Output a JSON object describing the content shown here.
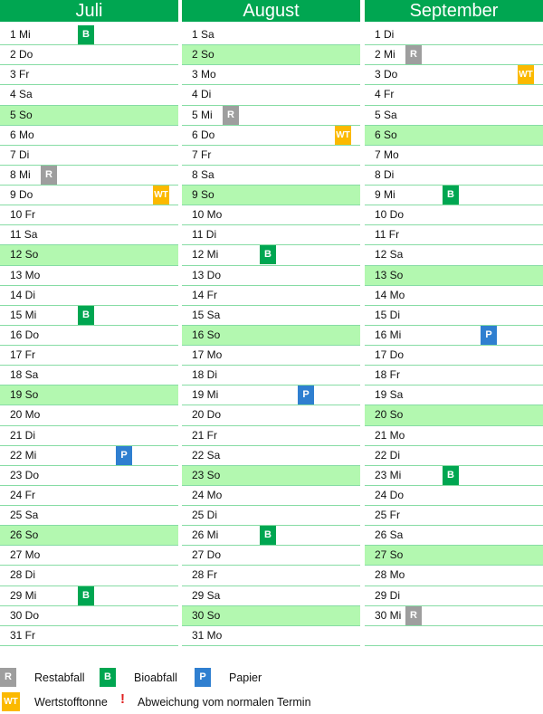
{
  "colors": {
    "header": "#00a651",
    "sunday": "#b3f8b0",
    "R": "#9e9e9e",
    "B": "#00a651",
    "P": "#2f7fd0",
    "WT": "#fbb900"
  },
  "months": [
    {
      "name": "Juli",
      "days": [
        {
          "label": "1 Mi",
          "badge": "B"
        },
        {
          "label": "2 Do"
        },
        {
          "label": "3 Fr"
        },
        {
          "label": "4 Sa"
        },
        {
          "label": "5 So",
          "sun": true
        },
        {
          "label": "6 Mo"
        },
        {
          "label": "7 Di"
        },
        {
          "label": "8 Mi",
          "badge": "R"
        },
        {
          "label": "9 Do",
          "badge": "WT"
        },
        {
          "label": "10 Fr"
        },
        {
          "label": "11 Sa"
        },
        {
          "label": "12 So",
          "sun": true
        },
        {
          "label": "13 Mo"
        },
        {
          "label": "14 Di"
        },
        {
          "label": "15 Mi",
          "badge": "B"
        },
        {
          "label": "16 Do"
        },
        {
          "label": "17 Fr"
        },
        {
          "label": "18 Sa"
        },
        {
          "label": "19 So",
          "sun": true
        },
        {
          "label": "20 Mo"
        },
        {
          "label": "21 Di"
        },
        {
          "label": "22 Mi",
          "badge": "P"
        },
        {
          "label": "23 Do"
        },
        {
          "label": "24 Fr"
        },
        {
          "label": "25 Sa"
        },
        {
          "label": "26 So",
          "sun": true
        },
        {
          "label": "27 Mo"
        },
        {
          "label": "28 Di"
        },
        {
          "label": "29 Mi",
          "badge": "B"
        },
        {
          "label": "30 Do"
        },
        {
          "label": "31 Fr"
        }
      ]
    },
    {
      "name": "August",
      "days": [
        {
          "label": "1 Sa"
        },
        {
          "label": "2 So",
          "sun": true
        },
        {
          "label": "3 Mo"
        },
        {
          "label": "4 Di"
        },
        {
          "label": "5 Mi",
          "badge": "R"
        },
        {
          "label": "6 Do",
          "badge": "WT"
        },
        {
          "label": "7 Fr"
        },
        {
          "label": "8 Sa"
        },
        {
          "label": "9 So",
          "sun": true
        },
        {
          "label": "10 Mo"
        },
        {
          "label": "11 Di"
        },
        {
          "label": "12 Mi",
          "badge": "B"
        },
        {
          "label": "13 Do"
        },
        {
          "label": "14 Fr"
        },
        {
          "label": "15 Sa"
        },
        {
          "label": "16 So",
          "sun": true
        },
        {
          "label": "17 Mo"
        },
        {
          "label": "18 Di"
        },
        {
          "label": "19 Mi",
          "badge": "P"
        },
        {
          "label": "20 Do"
        },
        {
          "label": "21 Fr"
        },
        {
          "label": "22 Sa"
        },
        {
          "label": "23 So",
          "sun": true
        },
        {
          "label": "24 Mo"
        },
        {
          "label": "25 Di"
        },
        {
          "label": "26 Mi",
          "badge": "B"
        },
        {
          "label": "27 Do"
        },
        {
          "label": "28 Fr"
        },
        {
          "label": "29 Sa"
        },
        {
          "label": "30 So",
          "sun": true
        },
        {
          "label": "31 Mo"
        }
      ]
    },
    {
      "name": "September",
      "days": [
        {
          "label": "1 Di"
        },
        {
          "label": "2 Mi",
          "badge": "R"
        },
        {
          "label": "3 Do",
          "badge": "WT"
        },
        {
          "label": "4 Fr"
        },
        {
          "label": "5 Sa"
        },
        {
          "label": "6 So",
          "sun": true
        },
        {
          "label": "7 Mo"
        },
        {
          "label": "8 Di"
        },
        {
          "label": "9 Mi",
          "badge": "B"
        },
        {
          "label": "10 Do"
        },
        {
          "label": "11 Fr"
        },
        {
          "label": "12 Sa"
        },
        {
          "label": "13 So",
          "sun": true
        },
        {
          "label": "14 Mo"
        },
        {
          "label": "15 Di"
        },
        {
          "label": "16 Mi",
          "badge": "P"
        },
        {
          "label": "17 Do"
        },
        {
          "label": "18 Fr"
        },
        {
          "label": "19 Sa"
        },
        {
          "label": "20 So",
          "sun": true
        },
        {
          "label": "21 Mo"
        },
        {
          "label": "22 Di"
        },
        {
          "label": "23 Mi",
          "badge": "B"
        },
        {
          "label": "24 Do"
        },
        {
          "label": "25 Fr"
        },
        {
          "label": "26 Sa"
        },
        {
          "label": "27 So",
          "sun": true
        },
        {
          "label": "28 Mo"
        },
        {
          "label": "29 Di"
        },
        {
          "label": "30 Mi",
          "badge": "R"
        }
      ]
    }
  ],
  "legend": {
    "R": {
      "code": "R",
      "label": "Restabfall"
    },
    "B": {
      "code": "B",
      "label": "Bioabfall"
    },
    "P": {
      "code": "P",
      "label": "Papier"
    },
    "WT": {
      "code": "WT",
      "label": "Wertstofftonne"
    },
    "deviation": {
      "mark": "!",
      "label": "Abweichung vom normalen Termin"
    }
  }
}
